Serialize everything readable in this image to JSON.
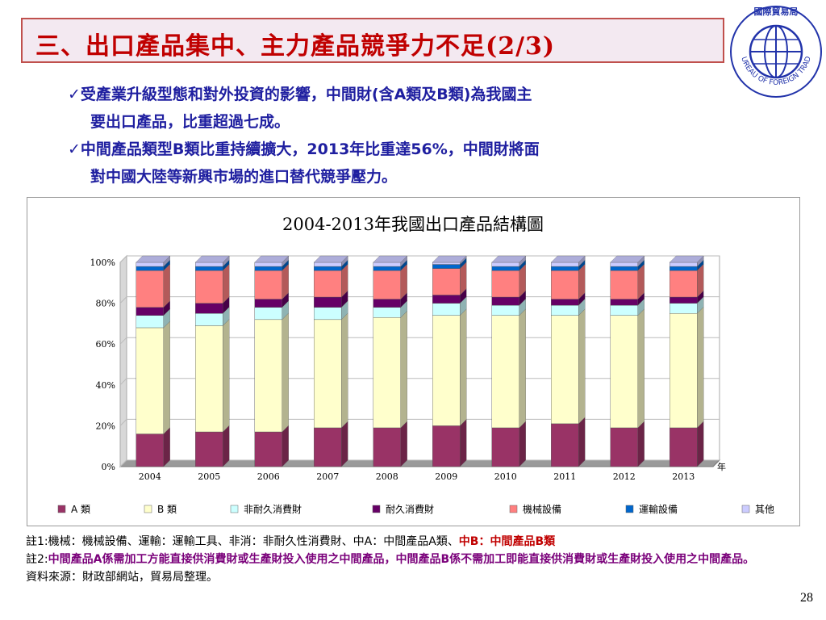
{
  "slide": {
    "title": "三、出口產品集中、主力產品競爭力不足(2/3)",
    "page_number": "28",
    "logo": {
      "top_text": "國際貿易局",
      "ring_text": "BUREAU OF FOREIGN TRADE",
      "icon": "globe-icon"
    }
  },
  "bullets": [
    {
      "check": "✓",
      "line1": "受產業升級型態和對外投資的影響，中間財(含A類及B類)為我國主",
      "line2": "要出口產品，比重超過七成。"
    },
    {
      "check": "✓",
      "line1": "中間產品類型B類比重持續擴大，2013年比重達56%，中間財將面",
      "line2": "對中國大陸等新興市場的進口替代競爭壓力。"
    }
  ],
  "chart_data": {
    "type": "bar",
    "stacked": true,
    "title": "2004-2013年我國出口產品結構圖",
    "x_unit_label": "年",
    "categories": [
      "2004",
      "2005",
      "2006",
      "2007",
      "2008",
      "2009",
      "2010",
      "2011",
      "2012",
      "2013"
    ],
    "ylim": [
      0,
      100
    ],
    "yticks": [
      "0%",
      "20%",
      "40%",
      "60%",
      "80%",
      "100%"
    ],
    "legend_position": "bottom",
    "series": [
      {
        "name": "A 類",
        "color": "#993366",
        "values": [
          16,
          17,
          17,
          19,
          19,
          20,
          19,
          21,
          19,
          19
        ]
      },
      {
        "name": "B 類",
        "color": "#ffffcc",
        "values": [
          52,
          52,
          55,
          53,
          54,
          54,
          55,
          53,
          55,
          56
        ]
      },
      {
        "name": "非耐久消費財",
        "color": "#ccffff",
        "values": [
          6,
          6,
          6,
          6,
          5,
          6,
          5,
          5,
          5,
          5
        ]
      },
      {
        "name": "耐久消費財",
        "color": "#660066",
        "values": [
          4,
          5,
          4,
          5,
          4,
          4,
          4,
          3,
          3,
          3
        ]
      },
      {
        "name": "機械設備",
        "color": "#ff8080",
        "values": [
          18,
          16,
          14,
          13,
          14,
          13,
          13,
          14,
          14,
          13
        ]
      },
      {
        "name": "運輸設備",
        "color": "#0066cc",
        "values": [
          2,
          2,
          2,
          2,
          2,
          2,
          2,
          2,
          2,
          2
        ]
      },
      {
        "name": "其他",
        "color": "#ccccff",
        "values": [
          2,
          2,
          2,
          2,
          2,
          1,
          2,
          2,
          2,
          2
        ]
      }
    ]
  },
  "notes": {
    "note1_prefix": "註1:",
    "note1_text": "機械：機械設備、運輸：運輸工具、非消：非耐久性消費財、中A：中間產品A類、",
    "note1_highlight": "中B：中間產品B類",
    "note2_prefix": "註2:",
    "note2_text": "中間產品A係需加工方能直接供消費財或生產財投入使用之中間產品，中間產品B係不需加工即能直接供消費財或生產財投入使用之中間產品。",
    "source": "資料來源：財政部網站，貿易局整理。"
  }
}
